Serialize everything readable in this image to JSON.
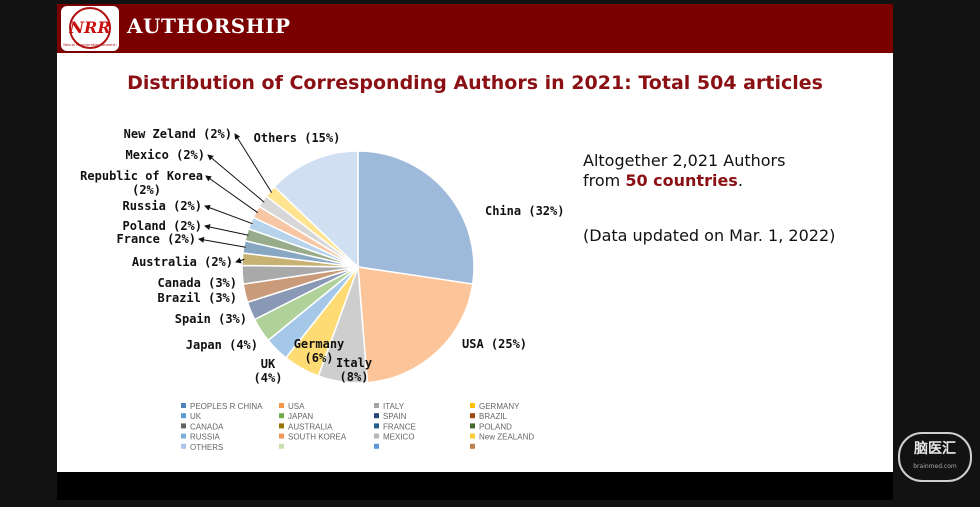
{
  "header": {
    "title": "AUTHORSHIP",
    "logo_text": "NRR",
    "logo_subtext": "Neural Regeneration Research"
  },
  "slide_title": "Distribution of Corresponding Authors in 2021: Total 504 articles",
  "info": {
    "line1": "Altogether 2,021 Authors",
    "line2_prefix": "from ",
    "line2_highlight": "50 countries",
    "line2_suffix": ".",
    "note": "(Data updated on Mar. 1, 2022)"
  },
  "watermark": {
    "text": "脑医汇",
    "sub": "brainmed.com"
  },
  "chart_data": {
    "type": "pie",
    "slices": [
      {
        "label": "China (32%)",
        "value": 32,
        "color": "#4f81bd",
        "legend": "PEOPLES R CHINA"
      },
      {
        "label": "USA (25%)",
        "value": 25,
        "color": "#f79646",
        "legend": "USA"
      },
      {
        "label": "Italy (8%)",
        "value": 8,
        "color": "#a5a5a5",
        "legend": "ITALY"
      },
      {
        "label": "Germany (6%)",
        "value": 6,
        "color": "#ffc000",
        "legend": "GERMANY"
      },
      {
        "label": "UK (4%)",
        "value": 4,
        "color": "#5b9bd5",
        "legend": "UK"
      },
      {
        "label": "Japan (4%)",
        "value": 4,
        "color": "#70ad47",
        "legend": "JAPAN"
      },
      {
        "label": "Spain (3%)",
        "value": 3,
        "color": "#264478",
        "legend": "SPAIN"
      },
      {
        "label": "Brazil (3%)",
        "value": 3,
        "color": "#9e480e",
        "legend": "BRAZIL"
      },
      {
        "label": "Canada (3%)",
        "value": 3,
        "color": "#636363",
        "legend": "CANADA"
      },
      {
        "label": "Australia (2%)",
        "value": 2,
        "color": "#997300",
        "legend": "AUSTRALIA"
      },
      {
        "label": "France (2%)",
        "value": 2,
        "color": "#255e91",
        "legend": "FRANCE"
      },
      {
        "label": "Poland (2%)",
        "value": 2,
        "color": "#43682b",
        "legend": "POLAND"
      },
      {
        "label": "Russia (2%)",
        "value": 2,
        "color": "#7cafdd",
        "legend": "RUSSIA"
      },
      {
        "label": "Republic of Korea (2%)",
        "value": 2,
        "color": "#f1975a",
        "legend": "SOUTH KOREA"
      },
      {
        "label": "Mexico (2%)",
        "value": 2,
        "color": "#b7b7b7",
        "legend": "MEXICO"
      },
      {
        "label": "New Zeland (2%)",
        "value": 2,
        "color": "#ffcd33",
        "legend": "New ZEALAND"
      },
      {
        "label": "Others (15%)",
        "value": 15,
        "color": "#a9c4e8",
        "legend": "OTHERS"
      }
    ],
    "extra_legend_colors": [
      "#c9e0b0",
      "#5b9bd5",
      "#c0804a"
    ]
  }
}
